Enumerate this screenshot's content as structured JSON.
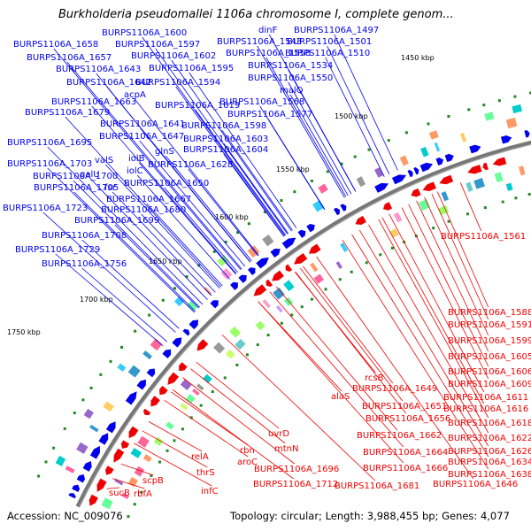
{
  "title": "Burkholderia pseudomallei 1106a chromosome I, complete genom...",
  "accession": "Accession: NC_009076",
  "summary": "Topology: circular; Length: 3,988,455 bp; Genes: 4,077",
  "colors": {
    "forward": "#0000ee",
    "reverse": "#ee0000",
    "backbone": "#777777",
    "tick_dot": "#228822"
  },
  "ticks": [
    "1450 kbp",
    "1500 kbp",
    "1550 kbp",
    "1600 kbp",
    "1650 kbp",
    "1700 kbp",
    "1750 kbp"
  ],
  "forward_labels": [
    "dinF",
    "BURPS1106A_1497",
    "BURPS1106A_1543",
    "BURPS1106A_1501",
    "BURPS1106A_1600",
    "BURPS1106A_1558",
    "BURPS1106A_1510",
    "BURPS1106A_1658",
    "BURPS1106A_1597",
    "BURPS1106A_1657",
    "BURPS1106A_1602",
    "BURPS1106A_1534",
    "BURPS1106A_1643",
    "BURPS1106A_1595",
    "BURPS1106A_1550",
    "BURPS1106A_1642",
    "BURPS1106A_1594",
    "malQ",
    "acpA",
    "BURPS1106A_1663",
    "BURPS1106A_1619",
    "BURPS1106A_1568",
    "BURPS1106A_1679",
    "BURPS1106A_1577",
    "BURPS1106A_1641",
    "BURPS1106A_1598",
    "BURPS1106A_1647",
    "BURPS1106A_1603",
    "BURPS1106A_1695",
    "glnS",
    "BURPS1106A_1604",
    "iolB",
    "valS",
    "BURPS1106A_1703",
    "BURPS1106A_1628",
    "iolC",
    "galU",
    "BURPS1106A_1700",
    "BURPS1106A_1650",
    "BURPS1106A_1705",
    "fsr",
    "BURPS1106A_1667",
    "BURPS1106A_1723",
    "BURPS1106A_1680",
    "BURPS1106A_1699",
    "BURPS1106A_1708",
    "BURPS1106A_1729",
    "BURPS1106A_1756"
  ],
  "reverse_labels": [
    "BURPS1106A_1561",
    "BURPS1106A_1588",
    "BURPS1106A_1591",
    "BURPS1106A_1599",
    "BURPS1106A_1605",
    "BURPS1106A_1606",
    "rcsB",
    "BURPS1106A_1609",
    "BURPS1106A_1649",
    "alaS",
    "BURPS1106A_1611",
    "BURPS1106A_1651",
    "BURPS1106A_1616",
    "BURPS1106A_1656",
    "BURPS1106A_1618",
    "BURPS1106A_1662",
    "uvrD",
    "BURPS1106A_1622",
    "mtnN",
    "BURPS1106A_1664",
    "BURPS1106A_1626",
    "rbn",
    "BURPS1106A_1666",
    "BURPS1106A_1634",
    "relA",
    "aroC",
    "BURPS1106A_1638",
    "BURPS1106A_1696",
    "BURPS1106A_1712",
    "BURPS1106A_1681",
    "thrS",
    "BURPS1106A_1646",
    "scpB",
    "infC",
    "sucB",
    "rbfA"
  ]
}
